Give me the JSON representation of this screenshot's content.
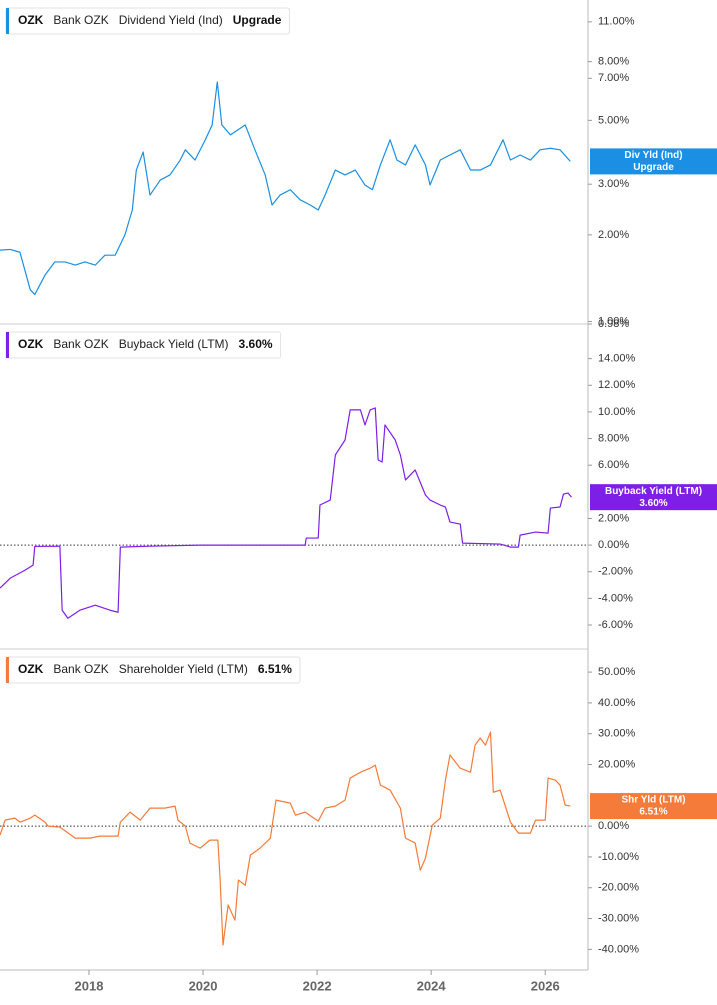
{
  "chart_data": [
    {
      "type": "line",
      "ticker": "OZK",
      "company": "Bank OZK",
      "log_scale": true,
      "badge_label": "Div Yld (Ind)",
      "current": {
        "label": "Upgrade"
      },
      "x": [
        2016.44,
        2016.62,
        2016.79,
        2016.97,
        2017.05,
        2017.23,
        2017.4,
        2017.58,
        2017.76,
        2017.93,
        2018.11,
        2018.28,
        2018.46,
        2018.63,
        2018.76,
        2018.83,
        2018.95,
        2019.07,
        2019.25,
        2019.42,
        2019.6,
        2019.69,
        2019.86,
        2020.04,
        2020.16,
        2020.25,
        2020.33,
        2020.48,
        2020.74,
        2020.91,
        2021.09,
        2021.21,
        2021.35,
        2021.53,
        2021.7,
        2021.88,
        2022.02,
        2022.14,
        2022.32,
        2022.49,
        2022.67,
        2022.84,
        2022.97,
        2023.11,
        2023.28,
        2023.4,
        2023.55,
        2023.72,
        2023.9,
        2023.98,
        2024.16,
        2024.33,
        2024.51,
        2024.69,
        2024.86,
        2025.04,
        2025.26,
        2025.39,
        2025.56,
        2025.74,
        2025.91,
        2026.09,
        2026.26,
        2026.44
      ],
      "series": [
        {
          "name": "Dividend Yield (Ind)",
          "color": "#1a8fe3",
          "values": [
            1.77,
            1.78,
            1.74,
            1.29,
            1.24,
            1.45,
            1.61,
            1.61,
            1.57,
            1.61,
            1.57,
            1.7,
            1.7,
            2.0,
            2.44,
            3.36,
            3.88,
            2.75,
            3.1,
            3.23,
            3.64,
            3.95,
            3.64,
            4.28,
            4.82,
            6.8,
            4.82,
            4.45,
            4.82,
            3.95,
            3.23,
            2.54,
            2.75,
            2.87,
            2.65,
            2.54,
            2.44,
            2.75,
            3.36,
            3.23,
            3.36,
            2.98,
            2.87,
            3.5,
            4.28,
            3.64,
            3.5,
            4.11,
            3.5,
            2.98,
            3.64,
            3.79,
            3.95,
            3.36,
            3.36,
            3.5,
            4.28,
            3.64,
            3.79,
            3.64,
            3.95,
            4.0,
            3.95,
            3.6
          ]
        }
      ],
      "xlim": [
        2016.44,
        2026.75
      ],
      "ylim": [
        0.98,
        13.1
      ],
      "yticks": [
        {
          "value": 11,
          "label": "11.00%"
        },
        {
          "value": 8,
          "label": "8.00%"
        },
        {
          "value": 7,
          "label": "7.00%"
        },
        {
          "value": 5,
          "label": "5.00%"
        },
        {
          "value": 3,
          "label": "3.00%"
        },
        {
          "value": 2,
          "label": "2.00%"
        },
        {
          "value": 1,
          "label": "1.00%"
        },
        {
          "value": 0.98,
          "label": "0.98%"
        }
      ]
    },
    {
      "type": "line",
      "ticker": "OZK",
      "company": "Bank OZK",
      "zero_line": true,
      "badge_label": "Buyback Yield (LTM)",
      "current": {
        "value": 3.6,
        "label": "3.60%"
      },
      "x": [
        2016.44,
        2016.62,
        2016.88,
        2017.02,
        2017.05,
        2017.49,
        2017.53,
        2017.63,
        2017.84,
        2018.11,
        2018.37,
        2018.51,
        2018.55,
        2019.07,
        2019.95,
        2021.79,
        2021.81,
        2022.02,
        2022.05,
        2022.23,
        2022.32,
        2022.49,
        2022.58,
        2022.76,
        2022.84,
        2022.93,
        2023.02,
        2023.07,
        2023.14,
        2023.19,
        2023.37,
        2023.46,
        2023.55,
        2023.72,
        2023.9,
        2023.98,
        2024.16,
        2024.25,
        2024.33,
        2024.51,
        2024.55,
        2025.21,
        2025.39,
        2025.53,
        2025.56,
        2025.83,
        2026.05,
        2026.09,
        2026.26,
        2026.32,
        2026.4,
        2026.46
      ],
      "series": [
        {
          "name": "Buyback Yield (LTM)",
          "color": "#7d1fe6",
          "values": [
            -3.23,
            -2.48,
            -1.88,
            -1.5,
            -0.1,
            -0.08,
            -4.89,
            -5.49,
            -4.89,
            -4.51,
            -4.89,
            -5.04,
            -0.15,
            -0.08,
            0,
            0,
            0.53,
            0.53,
            3.01,
            3.38,
            6.77,
            7.89,
            10.15,
            10.15,
            9.02,
            10.15,
            10.3,
            6.39,
            6.24,
            9.02,
            7.89,
            6.77,
            4.89,
            5.64,
            3.76,
            3.38,
            3.01,
            2.86,
            1.73,
            1.58,
            0.15,
            0.08,
            -0.15,
            -0.15,
            0.75,
            0.98,
            0.9,
            2.78,
            2.86,
            3.83,
            3.91,
            3.6
          ]
        }
      ],
      "xlim": [
        2016.44,
        2026.75
      ],
      "ylim": [
        -7.8,
        16.6
      ],
      "yticks": [
        {
          "value": 14,
          "label": "14.00%"
        },
        {
          "value": 12,
          "label": "12.00%"
        },
        {
          "value": 10,
          "label": "10.00%"
        },
        {
          "value": 8,
          "label": "8.00%"
        },
        {
          "value": 6,
          "label": "6.00%"
        },
        {
          "value": 2,
          "label": "2.00%"
        },
        {
          "value": 0,
          "label": "0.00%"
        },
        {
          "value": -2,
          "label": "-2.00%"
        },
        {
          "value": -4,
          "label": "-4.00%"
        },
        {
          "value": -6,
          "label": "-6.00%"
        }
      ]
    },
    {
      "type": "line",
      "ticker": "OZK",
      "company": "Bank OZK",
      "zero_line": true,
      "badge_label": "Shr Yld (LTM)",
      "current": {
        "value": 6.51,
        "label": "6.51%"
      },
      "x": [
        2016.44,
        2016.53,
        2016.7,
        2016.79,
        2016.97,
        2017.05,
        2017.23,
        2017.28,
        2017.49,
        2017.76,
        2018.02,
        2018.19,
        2018.51,
        2018.55,
        2018.72,
        2018.9,
        2019.07,
        2019.33,
        2019.51,
        2019.56,
        2019.69,
        2019.77,
        2019.95,
        2020.12,
        2020.26,
        2020.3,
        2020.35,
        2020.44,
        2020.56,
        2020.62,
        2020.74,
        2020.83,
        2021,
        2021.18,
        2021.28,
        2021.53,
        2021.62,
        2021.79,
        2022.02,
        2022.14,
        2022.32,
        2022.49,
        2022.58,
        2022.76,
        2022.93,
        2023.02,
        2023.11,
        2023.28,
        2023.46,
        2023.55,
        2023.72,
        2023.81,
        2023.9,
        2024.02,
        2024.16,
        2024.25,
        2024.33,
        2024.51,
        2024.69,
        2024.77,
        2024.86,
        2024.95,
        2025.04,
        2025.09,
        2025.21,
        2025.39,
        2025.53,
        2025.74,
        2025.83,
        2026,
        2026.05,
        2026.18,
        2026.26,
        2026.35,
        2026.44
      ],
      "series": [
        {
          "name": "Shareholder Yield (LTM)",
          "color": "#f47b3a",
          "values": [
            -2.92,
            1.95,
            2.6,
            1.3,
            2.6,
            3.57,
            1.3,
            0,
            -0.32,
            -3.9,
            -3.9,
            -3.25,
            -3.25,
            1.3,
            4.55,
            1.95,
            5.84,
            5.84,
            6.49,
            1.95,
            0,
            -5.52,
            -7.14,
            -4.55,
            -4.55,
            -17.53,
            -38.6,
            -25.6,
            -30.5,
            -17.5,
            -19.2,
            -9.4,
            -7.14,
            -3.9,
            8.44,
            7.47,
            3.57,
            4.55,
            1.62,
            5.84,
            6.49,
            8.44,
            15.6,
            17.5,
            18.8,
            19.8,
            13.3,
            11.7,
            5.84,
            -3.9,
            -5.5,
            -14.3,
            -10.4,
            0.32,
            2.6,
            14.9,
            23.1,
            18.8,
            17.5,
            26.3,
            28.6,
            26.3,
            30.5,
            11,
            11.7,
            1.3,
            -2.27,
            -2.27,
            1.95,
            1.95,
            15.6,
            14.9,
            13.3,
            6.82,
            6.51
          ]
        }
      ],
      "xlim": [
        2016.44,
        2026.75
      ],
      "ylim": [
        -46.7,
        57.5
      ],
      "yticks": [
        {
          "value": 50,
          "label": "50.00%"
        },
        {
          "value": 40,
          "label": "40.00%"
        },
        {
          "value": 30,
          "label": "30.00%"
        },
        {
          "value": 20,
          "label": "20.00%"
        },
        {
          "value": 0,
          "label": "0.00%"
        },
        {
          "value": -10,
          "label": "-10.00%"
        },
        {
          "value": -20,
          "label": "-20.00%"
        },
        {
          "value": -30,
          "label": "-30.00%"
        },
        {
          "value": -40,
          "label": "-40.00%"
        }
      ],
      "xticks": [
        2018,
        2020,
        2022,
        2024,
        2026
      ]
    }
  ]
}
